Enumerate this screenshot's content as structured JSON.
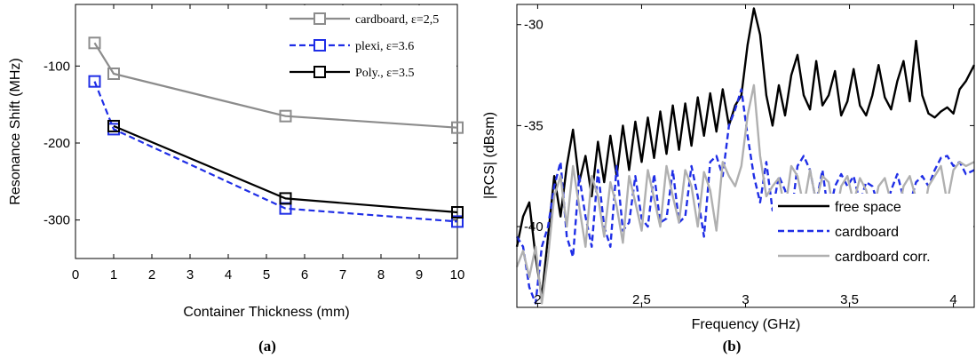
{
  "chart_data": [
    {
      "type": "line",
      "panel_label": "(a)",
      "xlabel": "Container Thickness (mm)",
      "ylabel": "Resonance Shift (MHz)",
      "xlim": [
        0,
        10
      ],
      "ylim": [
        -350,
        -20
      ],
      "xticks": [
        "0",
        "1",
        "2",
        "3",
        "4",
        "5",
        "6",
        "7",
        "8",
        "9",
        "10"
      ],
      "yticks": [
        "-100",
        "-200",
        "-300"
      ],
      "grid": false,
      "legend_position": "top-right",
      "series": [
        {
          "name": "cardboard, ε=2,5",
          "color": "#8c8c8c",
          "dash": "solid",
          "marker": "square",
          "x": [
            0.5,
            1,
            5.5,
            10
          ],
          "y": [
            -70,
            -110,
            -165,
            -180
          ]
        },
        {
          "name": "plexi, ε=3.6",
          "color": "#1f2ee6",
          "dash": "dashed",
          "marker": "square",
          "x": [
            0.5,
            1,
            5.5,
            10
          ],
          "y": [
            -120,
            -182,
            -285,
            -302
          ]
        },
        {
          "name": "Poly., ε=3.5",
          "color": "#000000",
          "dash": "solid",
          "marker": "square",
          "x": [
            1,
            5.5,
            10
          ],
          "y": [
            -178,
            -272,
            -290
          ]
        }
      ]
    },
    {
      "type": "line",
      "panel_label": "(b)",
      "xlabel": "Frequency (GHz)",
      "ylabel": "|RCS| (dBsm)",
      "xlim": [
        1.9,
        4.1
      ],
      "ylim": [
        -44,
        -29
      ],
      "xticks": [
        "2",
        "2.5",
        "3",
        "3.5",
        "4"
      ],
      "yticks": [
        "-30",
        "-35",
        "-40"
      ],
      "grid": false,
      "legend_position": "bottom-right",
      "series": [
        {
          "name": "free space",
          "color": "#000000",
          "dash": "solid",
          "x": [
            1.9,
            1.93,
            1.96,
            1.99,
            2.02,
            2.05,
            2.08,
            2.11,
            2.14,
            2.17,
            2.2,
            2.23,
            2.26,
            2.29,
            2.32,
            2.35,
            2.38,
            2.41,
            2.44,
            2.47,
            2.5,
            2.53,
            2.56,
            2.59,
            2.62,
            2.65,
            2.68,
            2.71,
            2.74,
            2.77,
            2.8,
            2.83,
            2.86,
            2.89,
            2.92,
            2.95,
            2.98,
            3.01,
            3.04,
            3.07,
            3.1,
            3.13,
            3.16,
            3.19,
            3.22,
            3.25,
            3.28,
            3.31,
            3.34,
            3.37,
            3.4,
            3.43,
            3.46,
            3.49,
            3.52,
            3.55,
            3.58,
            3.61,
            3.64,
            3.67,
            3.7,
            3.73,
            3.76,
            3.79,
            3.82,
            3.85,
            3.88,
            3.91,
            3.94,
            3.97,
            4.0,
            4.03,
            4.06,
            4.1
          ],
          "y": [
            -41.0,
            -39.5,
            -38.8,
            -41.5,
            -43.5,
            -40.5,
            -37.5,
            -39.5,
            -37.0,
            -35.2,
            -37.8,
            -36.5,
            -38.5,
            -35.8,
            -37.8,
            -35.5,
            -37.5,
            -35.0,
            -37.2,
            -34.8,
            -36.8,
            -34.6,
            -36.6,
            -34.3,
            -36.4,
            -34.0,
            -36.2,
            -33.9,
            -36.0,
            -33.6,
            -35.5,
            -33.4,
            -35.3,
            -33.2,
            -35.0,
            -34.0,
            -33.5,
            -31.0,
            -29.2,
            -30.5,
            -33.5,
            -35.0,
            -33.0,
            -34.5,
            -32.5,
            -31.5,
            -33.5,
            -34.2,
            -31.8,
            -34.0,
            -33.5,
            -32.3,
            -34.5,
            -33.8,
            -32.2,
            -34.0,
            -34.5,
            -33.5,
            -32.0,
            -33.6,
            -34.2,
            -32.8,
            -31.8,
            -33.8,
            -30.8,
            -33.5,
            -34.4,
            -34.6,
            -34.3,
            -34.1,
            -34.4,
            -33.2,
            -32.8,
            -32.0
          ]
        },
        {
          "name": "cardboard",
          "color": "#1f2ee6",
          "dash": "dashed",
          "x": [
            1.9,
            1.93,
            1.96,
            1.99,
            2.02,
            2.05,
            2.08,
            2.11,
            2.14,
            2.17,
            2.2,
            2.23,
            2.26,
            2.29,
            2.32,
            2.35,
            2.38,
            2.41,
            2.44,
            2.47,
            2.5,
            2.53,
            2.56,
            2.59,
            2.62,
            2.65,
            2.68,
            2.71,
            2.74,
            2.77,
            2.8,
            2.83,
            2.86,
            2.89,
            2.92,
            2.95,
            2.98,
            3.01,
            3.04,
            3.07,
            3.1,
            3.13,
            3.16,
            3.19,
            3.22,
            3.25,
            3.28,
            3.31,
            3.34,
            3.37,
            3.4,
            3.43,
            3.46,
            3.49,
            3.52,
            3.55,
            3.58,
            3.61,
            3.64,
            3.67,
            3.7,
            3.73,
            3.76,
            3.79,
            3.82,
            3.85,
            3.88,
            3.91,
            3.94,
            3.97,
            4.0,
            4.03,
            4.06,
            4.1
          ],
          "y": [
            -40.5,
            -41.0,
            -43.0,
            -43.8,
            -41.0,
            -40.0,
            -38.0,
            -36.8,
            -40.5,
            -41.5,
            -37.5,
            -39.5,
            -41.0,
            -37.2,
            -40.0,
            -41.0,
            -37.0,
            -40.2,
            -39.8,
            -37.5,
            -39.6,
            -40.0,
            -37.4,
            -39.8,
            -39.6,
            -37.2,
            -39.8,
            -39.5,
            -37.0,
            -38.5,
            -40.5,
            -36.8,
            -36.5,
            -37.5,
            -35.0,
            -34.2,
            -33.2,
            -35.5,
            -37.5,
            -38.8,
            -36.8,
            -39.2,
            -37.5,
            -38.2,
            -39.5,
            -37.0,
            -36.5,
            -37.2,
            -38.8,
            -37.2,
            -39.5,
            -38.0,
            -37.4,
            -38.0,
            -37.5,
            -38.8,
            -37.8,
            -38.0,
            -39.0,
            -39.5,
            -38.2,
            -37.4,
            -38.6,
            -38.9,
            -37.8,
            -37.5,
            -38.0,
            -37.2,
            -36.6,
            -36.5,
            -37.0,
            -36.8,
            -37.4,
            -37.2
          ]
        },
        {
          "name": "cardboard corr.",
          "color": "#b0b0b0",
          "dash": "solid",
          "x": [
            1.9,
            1.93,
            1.96,
            1.99,
            2.02,
            2.05,
            2.08,
            2.11,
            2.14,
            2.17,
            2.2,
            2.23,
            2.26,
            2.29,
            2.32,
            2.35,
            2.38,
            2.41,
            2.44,
            2.47,
            2.5,
            2.53,
            2.56,
            2.59,
            2.62,
            2.65,
            2.68,
            2.71,
            2.74,
            2.77,
            2.8,
            2.83,
            2.86,
            2.89,
            2.92,
            2.95,
            2.98,
            3.01,
            3.04,
            3.07,
            3.1,
            3.13,
            3.16,
            3.19,
            3.22,
            3.25,
            3.28,
            3.31,
            3.34,
            3.37,
            3.4,
            3.43,
            3.46,
            3.49,
            3.52,
            3.55,
            3.58,
            3.61,
            3.64,
            3.67,
            3.7,
            3.73,
            3.76,
            3.79,
            3.82,
            3.85,
            3.88,
            3.91,
            3.94,
            3.97,
            4.0,
            4.03,
            4.06,
            4.1
          ],
          "y": [
            -42.0,
            -41.2,
            -42.5,
            -41.0,
            -43.8,
            -41.5,
            -38.5,
            -37.5,
            -40.0,
            -37.0,
            -39.0,
            -41.0,
            -37.5,
            -38.5,
            -40.5,
            -37.8,
            -39.0,
            -40.8,
            -37.5,
            -38.8,
            -40.2,
            -37.2,
            -38.6,
            -40.0,
            -37.0,
            -38.5,
            -39.8,
            -37.2,
            -38.0,
            -40.0,
            -37.3,
            -38.2,
            -40.2,
            -36.8,
            -37.5,
            -38.0,
            -37.0,
            -34.5,
            -33.0,
            -36.5,
            -38.5,
            -38.0,
            -37.6,
            -39.2,
            -37.0,
            -37.5,
            -39.0,
            -37.2,
            -38.8,
            -37.5,
            -37.8,
            -39.8,
            -38.0,
            -37.5,
            -38.8,
            -37.6,
            -38.2,
            -39.5,
            -38.0,
            -37.6,
            -38.8,
            -39.6,
            -38.0,
            -37.5,
            -38.6,
            -39.8,
            -38.0,
            -37.5,
            -37.0,
            -38.8,
            -37.2,
            -36.8,
            -37.0,
            -36.8
          ]
        }
      ]
    }
  ]
}
